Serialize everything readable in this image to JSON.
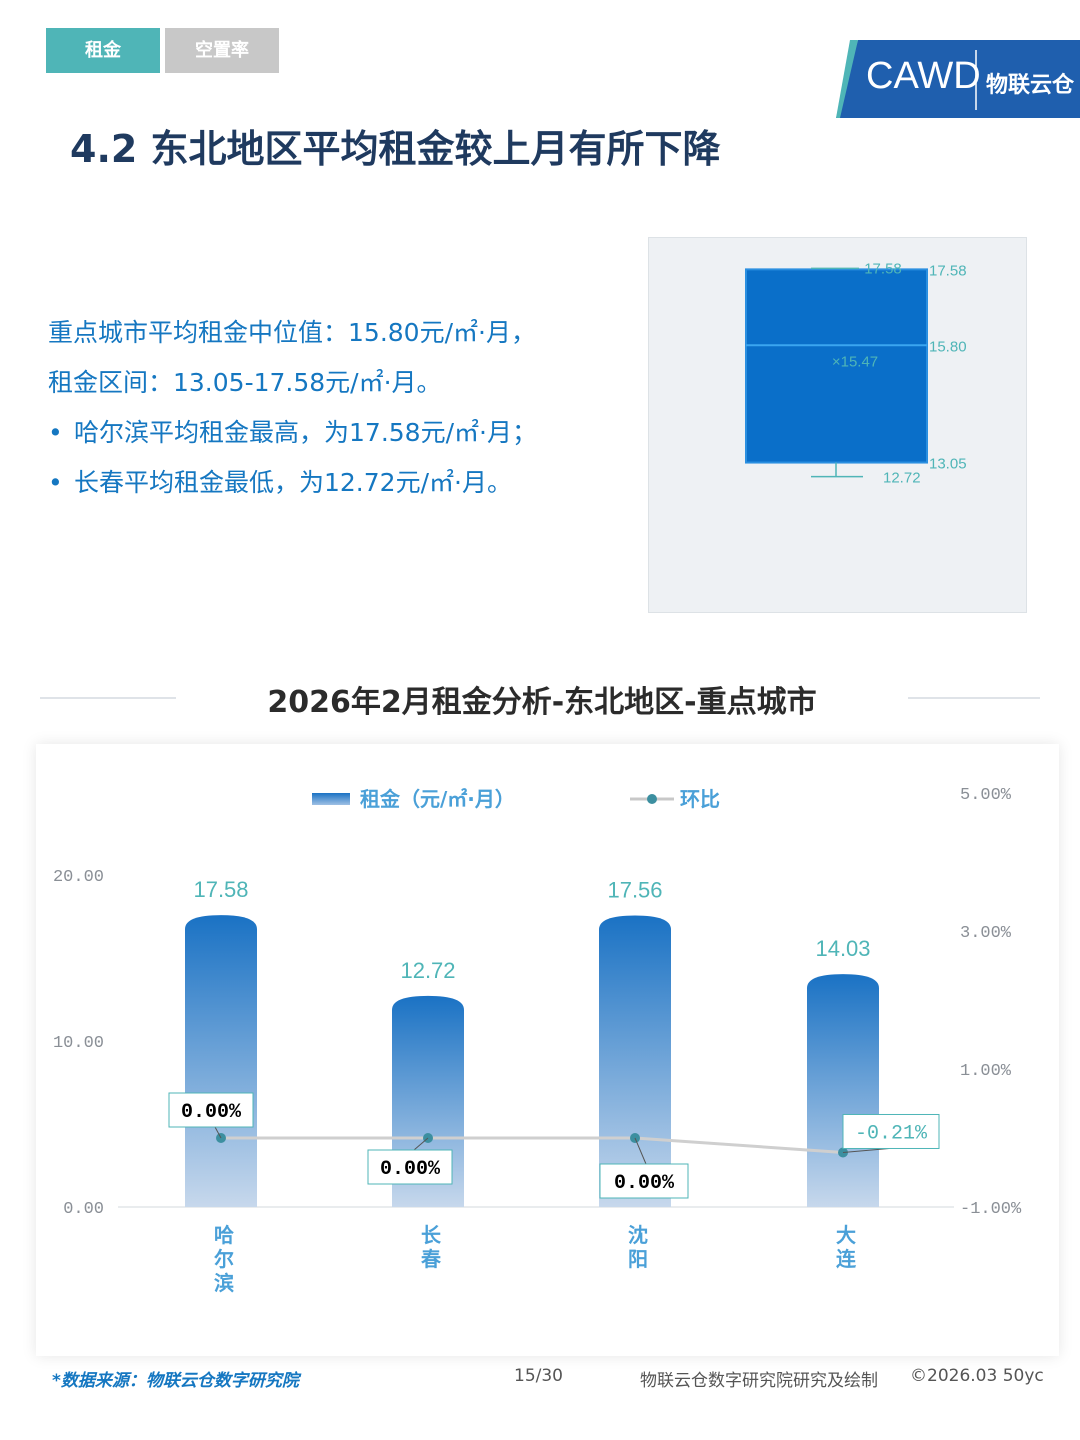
{
  "tabs": [
    {
      "label": "租金",
      "active": true
    },
    {
      "label": "空置率",
      "active": false
    }
  ],
  "logo": {
    "cawd": "CAWD",
    "brand": "物联云仓"
  },
  "page_title": "4.2 东北地区平均租金较上月有所下降",
  "summary": {
    "line1": "重点城市平均租金中位值：15.80元/㎡·月，",
    "line2": "租金区间：13.05-17.58元/㎡·月。",
    "bullets": [
      "哈尔滨平均租金最高，为17.58元/㎡·月；",
      "长春平均租金最低，为12.72元/㎡·月。"
    ]
  },
  "colors": {
    "accent_teal": "#4fb5b7",
    "inactive_gray": "#c8c8c8",
    "title_navy": "#1f3a5f",
    "summary_blue": "#1577c1",
    "box_blue": "#0a6fc9",
    "bar_top": "#1a72c4",
    "bar_bottom": "#c7d8ec",
    "label_teal": "#4fb5b7",
    "line_gray": "#c8c8c8"
  },
  "boxplot": {
    "max": 17.58,
    "q3": 17.58,
    "median": 15.8,
    "mean": 15.47,
    "q1": 13.05,
    "min": 12.72,
    "labels": {
      "max": "17.58",
      "q3": "17.58",
      "median": "15.80",
      "mean": "×15.47",
      "q1": "13.05",
      "min": "12.72"
    }
  },
  "section_title": "2026年2月租金分析-东北地区-重点城市",
  "chart_data": {
    "type": "bar",
    "categories": [
      "哈尔滨",
      "长春",
      "沈阳",
      "大连"
    ],
    "series": [
      {
        "name": "租金（元/㎡·月）",
        "type": "bar",
        "axis": "left",
        "values": [
          17.58,
          12.72,
          17.56,
          14.03
        ],
        "labels": [
          "17.58",
          "12.72",
          "17.56",
          "14.03"
        ]
      },
      {
        "name": "环比",
        "type": "line",
        "axis": "right",
        "values": [
          0.0,
          0.0,
          0.0,
          -0.21
        ],
        "labels": [
          "0.00%",
          "0.00%",
          "0.00%",
          "-0.21%"
        ]
      }
    ],
    "left_axis": {
      "range": [
        0,
        20
      ],
      "ticks": [
        0,
        10,
        20
      ],
      "tick_labels": [
        "0.00",
        "10.00",
        "20.00"
      ]
    },
    "right_axis": {
      "range": [
        -1,
        5
      ],
      "ticks": [
        -1,
        1,
        3,
        5
      ],
      "tick_labels": [
        "-1.00%",
        "1.00%",
        "3.00%",
        "5.00%"
      ]
    },
    "legend_position": "top-center",
    "grid": false
  },
  "footer": {
    "source": "*数据来源：物联云仓数字研究院",
    "page": "15/30",
    "credit": "物联云仓数字研究院研究及绘制",
    "copyright": "©2026.03 50yc"
  }
}
